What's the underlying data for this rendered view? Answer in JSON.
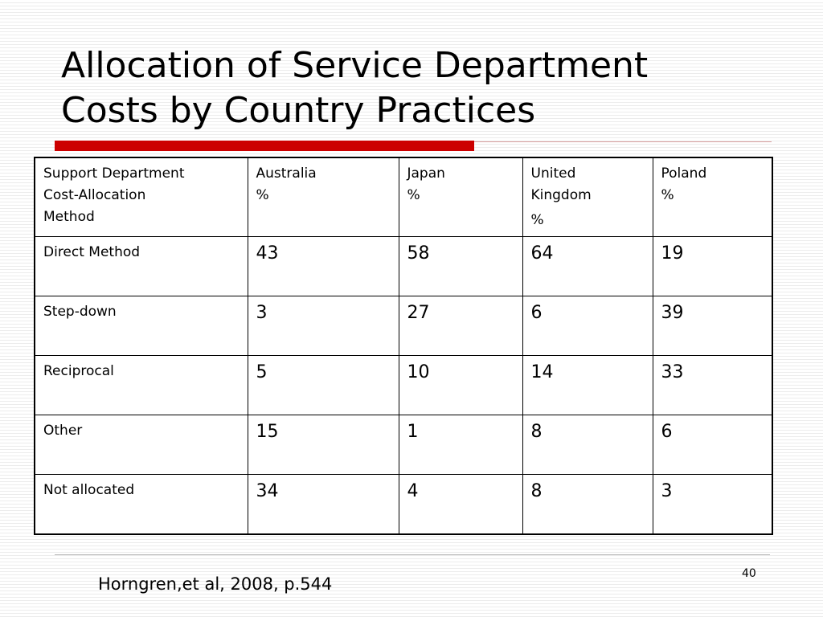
{
  "slide": {
    "title_line1": "Allocation of Service Department",
    "title_line2": "Costs by Country Practices",
    "source": "Horngren,et al, 2008, p.544",
    "page_number": "40",
    "accent_color": "#cc0000"
  },
  "table": {
    "header": {
      "method": [
        "Support Department",
        "Cost-Allocation",
        "Method"
      ],
      "countries": [
        {
          "name_lines": [
            "Australia"
          ],
          "unit": "%"
        },
        {
          "name_lines": [
            "Japan"
          ],
          "unit": "%"
        },
        {
          "name_lines": [
            "United",
            "Kingdom"
          ],
          "unit": "%"
        },
        {
          "name_lines": [
            "Poland"
          ],
          "unit": "%"
        }
      ]
    },
    "rows": [
      {
        "method": "Direct Method",
        "values": [
          "43",
          "58",
          "64",
          "19"
        ]
      },
      {
        "method": "Step-down",
        "values": [
          "3",
          "27",
          "6",
          "39"
        ]
      },
      {
        "method": "Reciprocal",
        "values": [
          "5",
          "10",
          "14",
          "33"
        ]
      },
      {
        "method": "Other",
        "values": [
          "15",
          "1",
          "8",
          "6"
        ]
      },
      {
        "method": "Not allocated",
        "values": [
          "34",
          "4",
          "8",
          "3"
        ]
      }
    ]
  }
}
